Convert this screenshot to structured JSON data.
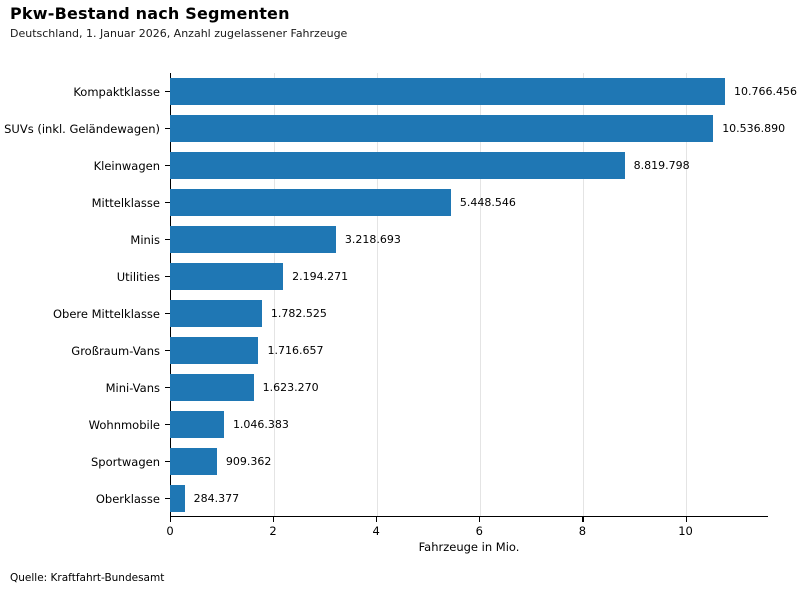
{
  "header": {
    "title": "Pkw-Bestand nach Segmenten",
    "subtitle": "Deutschland, 1. Januar 2026, Anzahl zugelassener Fahrzeuge"
  },
  "footer": {
    "source": "Quelle: Kraftfahrt-Bundesamt"
  },
  "chart_data": {
    "type": "bar",
    "orientation": "horizontal",
    "title": "Pkw-Bestand nach Segmenten",
    "subtitle": "Deutschland, 1. Januar 2026, Anzahl zugelassener Fahrzeuge",
    "categories": [
      "Kompaktklasse",
      "SUVs (inkl. Geländewagen)",
      "Kleinwagen",
      "Mittelklasse",
      "Minis",
      "Utilities",
      "Obere Mittelklasse",
      "Großraum-Vans",
      "Mini-Vans",
      "Wohnmobile",
      "Sportwagen",
      "Oberklasse"
    ],
    "values": [
      10766456,
      10536890,
      8819798,
      5448546,
      3218693,
      2194271,
      1782525,
      1716657,
      1623270,
      1046383,
      909362,
      284377
    ],
    "values_mio": [
      10.766456,
      10.53689,
      8.819798,
      5.448546,
      3.218693,
      2.194271,
      1.782525,
      1.716657,
      1.62327,
      1.046383,
      0.909362,
      0.284377
    ],
    "value_labels": [
      "10.766.456",
      "10.536.890",
      "8.819.798",
      "5.448.546",
      "3.218.693",
      "2.194.271",
      "1.782.525",
      "1.716.657",
      "1.623.270",
      "1.046.383",
      "909.362",
      "284.377"
    ],
    "xlabel": "Fahrzeuge in Mio.",
    "xlim": [
      0,
      11.6
    ],
    "xticks": [
      0,
      2,
      4,
      6,
      8,
      10
    ],
    "grid": "vertical-light",
    "legend": "none",
    "bar_color": "#1f77b4",
    "gridline_color": "#e4e4e4",
    "source": "Quelle: Kraftfahrt-Bundesamt"
  }
}
